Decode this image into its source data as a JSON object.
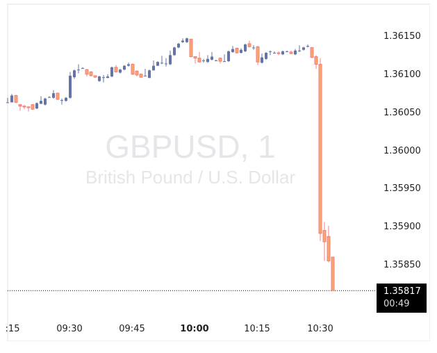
{
  "chart_data": {
    "type": "candlestick",
    "title": "GBPUSD, 1",
    "subtitle": "British Pound / U.S. Dollar",
    "symbol": "GBPUSD",
    "interval": "1",
    "y_ticks": [
      "1.36150",
      "1.36100",
      "1.36050",
      "1.36000",
      "1.35950",
      "1.35900",
      "1.35850"
    ],
    "x_ticks": [
      ":15",
      "09:30",
      "09:45",
      "10:00",
      "10:15",
      "10:30"
    ],
    "x_ticks_bold": [
      "10:00"
    ],
    "ylim": [
      1.3579,
      1.36195
    ],
    "last_price": "1.35817",
    "countdown": "00:49",
    "colors": {
      "up": "#6474a6",
      "down_body": "#f9a66c",
      "down_border": "#f08080",
      "last_price_bg": "#000000"
    },
    "candles": [
      {
        "x": 11,
        "o": 1.36064,
        "c": 1.36064,
        "h": 1.3607,
        "l": 1.36063
      },
      {
        "x": 17,
        "o": 1.36064,
        "c": 1.36073,
        "h": 1.36075,
        "l": 1.36064
      },
      {
        "x": 23,
        "o": 1.36073,
        "c": 1.36064,
        "h": 1.36074,
        "l": 1.36063
      },
      {
        "x": 29,
        "o": 1.36061,
        "c": 1.36059,
        "h": 1.36062,
        "l": 1.36053
      },
      {
        "x": 35,
        "o": 1.36059,
        "c": 1.36058,
        "h": 1.36061,
        "l": 1.36055
      },
      {
        "x": 41,
        "o": 1.36058,
        "c": 1.36057,
        "h": 1.36059,
        "l": 1.36052
      },
      {
        "x": 47,
        "o": 1.36061,
        "c": 1.36055,
        "h": 1.36062,
        "l": 1.36054
      },
      {
        "x": 53,
        "o": 1.36056,
        "c": 1.36063,
        "h": 1.36064,
        "l": 1.36055
      },
      {
        "x": 59,
        "o": 1.36062,
        "c": 1.36066,
        "h": 1.36072,
        "l": 1.36062
      },
      {
        "x": 65,
        "o": 1.36061,
        "c": 1.36069,
        "h": 1.3607,
        "l": 1.3606
      },
      {
        "x": 71,
        "o": 1.3607,
        "c": 1.36071,
        "h": 1.36072,
        "l": 1.3607
      },
      {
        "x": 77,
        "o": 1.3607,
        "c": 1.36076,
        "h": 1.3608,
        "l": 1.36069
      },
      {
        "x": 83,
        "o": 1.36076,
        "c": 1.36068,
        "h": 1.36077,
        "l": 1.36067
      },
      {
        "x": 89,
        "o": 1.36067,
        "c": 1.36067,
        "h": 1.36069,
        "l": 1.36061
      },
      {
        "x": 95,
        "o": 1.36066,
        "c": 1.3607,
        "h": 1.36071,
        "l": 1.36065
      },
      {
        "x": 101,
        "o": 1.3607,
        "c": 1.36099,
        "h": 1.36104,
        "l": 1.36069
      },
      {
        "x": 107,
        "o": 1.36097,
        "c": 1.36106,
        "h": 1.36107,
        "l": 1.36095
      },
      {
        "x": 113,
        "o": 1.36107,
        "c": 1.36107,
        "h": 1.36114,
        "l": 1.36102
      },
      {
        "x": 119,
        "o": 1.36108,
        "c": 1.36109,
        "h": 1.3611,
        "l": 1.36108
      },
      {
        "x": 125,
        "o": 1.36107,
        "c": 1.36101,
        "h": 1.36108,
        "l": 1.36098
      },
      {
        "x": 131,
        "o": 1.36104,
        "c": 1.36099,
        "h": 1.36105,
        "l": 1.36098
      },
      {
        "x": 137,
        "o": 1.36099,
        "c": 1.36097,
        "h": 1.36099,
        "l": 1.36096
      },
      {
        "x": 143,
        "o": 1.36092,
        "c": 1.36098,
        "h": 1.36099,
        "l": 1.36091
      },
      {
        "x": 149,
        "o": 1.36096,
        "c": 1.36097,
        "h": 1.361,
        "l": 1.3609
      },
      {
        "x": 155,
        "o": 1.36096,
        "c": 1.36098,
        "h": 1.36101,
        "l": 1.36096
      },
      {
        "x": 161,
        "o": 1.36098,
        "c": 1.3611,
        "h": 1.36111,
        "l": 1.36097
      },
      {
        "x": 167,
        "o": 1.3611,
        "c": 1.36104,
        "h": 1.36113,
        "l": 1.36103
      },
      {
        "x": 173,
        "o": 1.36103,
        "c": 1.36107,
        "h": 1.36108,
        "l": 1.36102
      },
      {
        "x": 179,
        "o": 1.36107,
        "c": 1.36112,
        "h": 1.36113,
        "l": 1.36106
      },
      {
        "x": 185,
        "o": 1.36112,
        "c": 1.36114,
        "h": 1.36116,
        "l": 1.36111
      },
      {
        "x": 191,
        "o": 1.36114,
        "c": 1.36101,
        "h": 1.36115,
        "l": 1.361
      },
      {
        "x": 197,
        "o": 1.36105,
        "c": 1.361,
        "h": 1.36106,
        "l": 1.36098
      },
      {
        "x": 203,
        "o": 1.36101,
        "c": 1.36097,
        "h": 1.36102,
        "l": 1.36096
      },
      {
        "x": 209,
        "o": 1.36099,
        "c": 1.36099,
        "h": 1.36108,
        "l": 1.36098
      },
      {
        "x": 215,
        "o": 1.36096,
        "c": 1.36106,
        "h": 1.36107,
        "l": 1.36096
      },
      {
        "x": 221,
        "o": 1.36106,
        "c": 1.36112,
        "h": 1.36119,
        "l": 1.36106
      },
      {
        "x": 227,
        "o": 1.36112,
        "c": 1.36117,
        "h": 1.36118,
        "l": 1.36112
      },
      {
        "x": 233,
        "o": 1.36116,
        "c": 1.36116,
        "h": 1.36125,
        "l": 1.36114
      },
      {
        "x": 239,
        "o": 1.36115,
        "c": 1.36115,
        "h": 1.36122,
        "l": 1.36111
      },
      {
        "x": 245,
        "o": 1.36114,
        "c": 1.36126,
        "h": 1.36132,
        "l": 1.36113
      },
      {
        "x": 251,
        "o": 1.36126,
        "c": 1.36136,
        "h": 1.36137,
        "l": 1.36125
      },
      {
        "x": 257,
        "o": 1.36136,
        "c": 1.36141,
        "h": 1.36142,
        "l": 1.36135
      },
      {
        "x": 263,
        "o": 1.36143,
        "c": 1.36145,
        "h": 1.36148,
        "l": 1.36142
      },
      {
        "x": 269,
        "o": 1.36143,
        "c": 1.36148,
        "h": 1.36149,
        "l": 1.36142
      },
      {
        "x": 275,
        "o": 1.36147,
        "c": 1.36124,
        "h": 1.36147,
        "l": 1.36123
      },
      {
        "x": 281,
        "o": 1.36124,
        "c": 1.36122,
        "h": 1.36124,
        "l": 1.36115
      },
      {
        "x": 287,
        "o": 1.36122,
        "c": 1.36117,
        "h": 1.3613,
        "l": 1.36116
      },
      {
        "x": 293,
        "o": 1.36119,
        "c": 1.36119,
        "h": 1.36121,
        "l": 1.36116
      },
      {
        "x": 299,
        "o": 1.36117,
        "c": 1.36121,
        "h": 1.36126,
        "l": 1.36116
      },
      {
        "x": 305,
        "o": 1.3612,
        "c": 1.36124,
        "h": 1.3613,
        "l": 1.36119
      },
      {
        "x": 311,
        "o": 1.36119,
        "c": 1.36119,
        "h": 1.3612,
        "l": 1.36119
      },
      {
        "x": 317,
        "o": 1.36122,
        "c": 1.36118,
        "h": 1.36123,
        "l": 1.36115
      },
      {
        "x": 323,
        "o": 1.36118,
        "c": 1.36118,
        "h": 1.36127,
        "l": 1.36117
      },
      {
        "x": 329,
        "o": 1.36118,
        "c": 1.36131,
        "h": 1.36132,
        "l": 1.36117
      },
      {
        "x": 335,
        "o": 1.3613,
        "c": 1.36134,
        "h": 1.36138,
        "l": 1.36129
      },
      {
        "x": 341,
        "o": 1.36135,
        "c": 1.36129,
        "h": 1.36136,
        "l": 1.36128
      },
      {
        "x": 347,
        "o": 1.36129,
        "c": 1.36133,
        "h": 1.36135,
        "l": 1.36128
      },
      {
        "x": 353,
        "o": 1.36131,
        "c": 1.3614,
        "h": 1.36141,
        "l": 1.3613
      },
      {
        "x": 359,
        "o": 1.36141,
        "c": 1.36137,
        "h": 1.36145,
        "l": 1.36136
      },
      {
        "x": 365,
        "o": 1.36136,
        "c": 1.36136,
        "h": 1.36139,
        "l": 1.36133
      },
      {
        "x": 371,
        "o": 1.36137,
        "c": 1.36117,
        "h": 1.36138,
        "l": 1.36113
      },
      {
        "x": 377,
        "o": 1.36116,
        "c": 1.36123,
        "h": 1.36128,
        "l": 1.36115
      },
      {
        "x": 383,
        "o": 1.36121,
        "c": 1.36129,
        "h": 1.3613,
        "l": 1.3612
      },
      {
        "x": 389,
        "o": 1.36131,
        "c": 1.36131,
        "h": 1.36132,
        "l": 1.36126
      },
      {
        "x": 395,
        "o": 1.36129,
        "c": 1.36129,
        "h": 1.36131,
        "l": 1.36128
      },
      {
        "x": 401,
        "o": 1.36129,
        "c": 1.36128,
        "h": 1.36131,
        "l": 1.36126
      },
      {
        "x": 407,
        "o": 1.36127,
        "c": 1.36131,
        "h": 1.36132,
        "l": 1.36126
      },
      {
        "x": 413,
        "o": 1.3613,
        "c": 1.36131,
        "h": 1.36132,
        "l": 1.3613
      },
      {
        "x": 419,
        "o": 1.3613,
        "c": 1.36128,
        "h": 1.36132,
        "l": 1.36127
      },
      {
        "x": 425,
        "o": 1.36127,
        "c": 1.36132,
        "h": 1.36134,
        "l": 1.36126
      },
      {
        "x": 431,
        "o": 1.36131,
        "c": 1.36132,
        "h": 1.36139,
        "l": 1.3613
      },
      {
        "x": 437,
        "o": 1.36133,
        "c": 1.36136,
        "h": 1.36137,
        "l": 1.36132
      },
      {
        "x": 443,
        "o": 1.36137,
        "c": 1.36138,
        "h": 1.3614,
        "l": 1.36136
      },
      {
        "x": 449,
        "o": 1.36136,
        "c": 1.36123,
        "h": 1.36136,
        "l": 1.36122
      },
      {
        "x": 455,
        "o": 1.36124,
        "c": 1.36114,
        "h": 1.36126,
        "l": 1.36108
      },
      {
        "x": 461,
        "o": 1.36114,
        "c": 1.35892,
        "h": 1.36122,
        "l": 1.35882
      },
      {
        "x": 467,
        "o": 1.35896,
        "c": 1.35881,
        "h": 1.35907,
        "l": 1.35856
      },
      {
        "x": 473,
        "o": 1.35888,
        "c": 1.35856,
        "h": 1.35902,
        "l": 1.35854
      },
      {
        "x": 479,
        "o": 1.35861,
        "c": 1.35817,
        "h": 1.35861,
        "l": 1.35817
      }
    ]
  }
}
